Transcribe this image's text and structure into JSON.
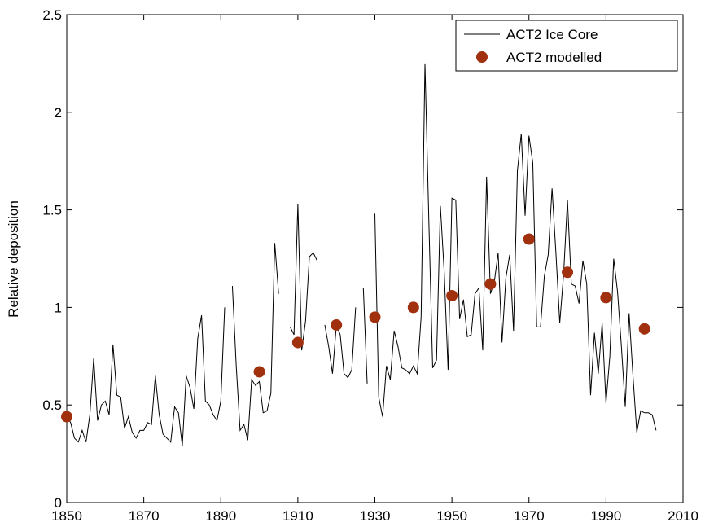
{
  "chart_data": {
    "type": "line",
    "ylabel": "Relative deposition",
    "xlim": [
      1850,
      2010
    ],
    "xticks": [
      1850,
      1870,
      1890,
      1910,
      1930,
      1950,
      1970,
      1990,
      2010
    ],
    "ylim": [
      0,
      2.5
    ],
    "yticks": [
      0,
      0.5,
      1,
      1.5,
      2,
      2.5
    ],
    "legend": "upper right",
    "series": [
      {
        "name": "ACT2 Ice Core",
        "color": "#000000",
        "type": "line",
        "x": [
          1850,
          1851,
          1852,
          1853,
          1854,
          1855,
          1856,
          1857,
          1858,
          1859,
          1860,
          1861,
          1862,
          1863,
          1864,
          1865,
          1866,
          1867,
          1868,
          1869,
          1870,
          1871,
          1872,
          1873,
          1874,
          1875,
          1876,
          1877,
          1878,
          1879,
          1880,
          1881,
          1882,
          1883,
          1884,
          1885,
          1886,
          1887,
          1888,
          1889,
          1890,
          1891,
          1892,
          1893,
          1894,
          1895,
          1896,
          1897,
          1898,
          1899,
          1900,
          1901,
          1902,
          1903,
          1904,
          1905,
          1906,
          1907,
          1908,
          1909,
          1910,
          1911,
          1912,
          1913,
          1914,
          1915,
          1916,
          1917,
          1918,
          1919,
          1920,
          1921,
          1922,
          1923,
          1924,
          1925,
          1926,
          1927,
          1928,
          1929,
          1930,
          1931,
          1932,
          1933,
          1934,
          1935,
          1936,
          1937,
          1938,
          1939,
          1940,
          1941,
          1942,
          1943,
          1944,
          1945,
          1946,
          1947,
          1948,
          1949,
          1950,
          1951,
          1952,
          1953,
          1954,
          1955,
          1956,
          1957,
          1958,
          1959,
          1960,
          1961,
          1962,
          1963,
          1964,
          1965,
          1966,
          1967,
          1968,
          1969,
          1970,
          1971,
          1972,
          1973,
          1974,
          1975,
          1976,
          1977,
          1978,
          1979,
          1980,
          1981,
          1982,
          1983,
          1984,
          1985,
          1986,
          1987,
          1988,
          1989,
          1990,
          1991,
          1992,
          1993,
          1994,
          1995,
          1996,
          1997,
          1998,
          1999,
          2000,
          2001,
          2002,
          2003
        ],
        "values": [
          0.44,
          0.41,
          0.33,
          0.31,
          0.37,
          0.31,
          0.45,
          0.74,
          0.42,
          0.5,
          0.52,
          0.45,
          0.81,
          0.55,
          0.54,
          0.38,
          0.44,
          0.36,
          0.33,
          0.37,
          0.37,
          0.41,
          0.4,
          0.65,
          0.45,
          0.35,
          0.33,
          0.31,
          0.49,
          0.46,
          0.29,
          0.65,
          0.59,
          0.48,
          0.84,
          0.96,
          0.52,
          0.5,
          0.45,
          0.42,
          0.52,
          1.0,
          null,
          1.11,
          0.7,
          0.37,
          0.4,
          0.32,
          0.63,
          0.6,
          0.62,
          0.46,
          0.47,
          0.56,
          1.33,
          1.07,
          null,
          null,
          0.9,
          0.86,
          1.53,
          0.78,
          0.93,
          1.26,
          1.28,
          1.24,
          null,
          0.91,
          0.8,
          0.66,
          0.91,
          0.86,
          0.66,
          0.64,
          0.68,
          1.0,
          null,
          1.1,
          0.61,
          null,
          1.48,
          0.54,
          0.44,
          0.7,
          0.63,
          0.88,
          0.8,
          0.69,
          0.68,
          0.66,
          0.7,
          0.66,
          0.95,
          2.25,
          1.45,
          0.69,
          0.73,
          1.52,
          1.18,
          0.68,
          1.56,
          1.55,
          0.94,
          1.04,
          0.85,
          0.86,
          1.07,
          1.1,
          0.78,
          1.67,
          1.07,
          1.13,
          1.28,
          0.82,
          1.15,
          1.27,
          0.88,
          1.7,
          1.89,
          1.47,
          1.88,
          1.74,
          0.9,
          0.9,
          1.16,
          1.27,
          1.61,
          1.28,
          0.92,
          1.17,
          1.55,
          1.12,
          1.11,
          1.02,
          1.24,
          1.12,
          0.55,
          0.87,
          0.66,
          0.92,
          0.51,
          0.75,
          1.25,
          1.08,
          0.8,
          0.49,
          0.97,
          0.65,
          0.36,
          0.47,
          0.46,
          0.46,
          0.45,
          0.37
        ]
      },
      {
        "name": "ACT2 modelled",
        "color": "#a0300e",
        "type": "scatter",
        "x": [
          1850,
          1900,
          1910,
          1920,
          1930,
          1940,
          1950,
          1960,
          1970,
          1980,
          1990,
          2000
        ],
        "values": [
          0.44,
          0.67,
          0.82,
          0.91,
          0.95,
          1.0,
          1.06,
          1.12,
          1.35,
          1.18,
          1.05,
          0.89
        ]
      }
    ]
  }
}
